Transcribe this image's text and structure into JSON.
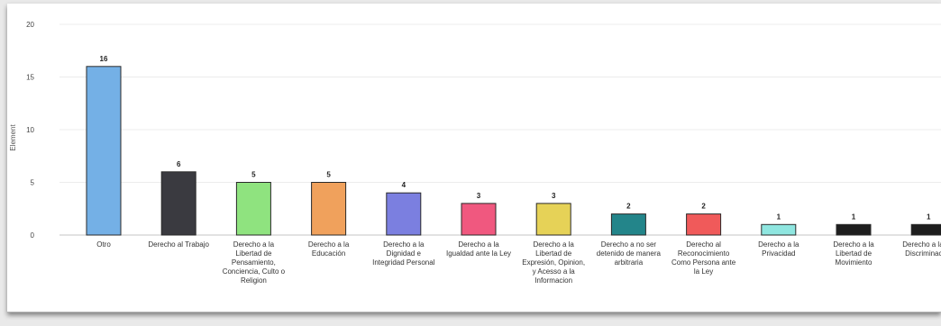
{
  "chart_data": {
    "type": "bar",
    "ylabel": "Element",
    "ylim": [
      0,
      20
    ],
    "yticks": [
      0,
      5,
      10,
      15,
      20
    ],
    "grid": true,
    "categories": [
      "Otro",
      "Derecho al Trabajo",
      "Derecho a la Libertad de Pensamiento, Conciencia, Culto o Religion",
      "Derecho a la Educación",
      "Derecho a la Dignidad e Integridad Personal",
      "Derecho a la Igualdad ante la Ley",
      "Derecho a la Libertad de Expresión, Opinion, y Acesso a la Informacion",
      "Derecho a no ser detenido de manera arbitraria",
      "Derecho al Reconocimiento Como Persona ante la Ley",
      "Derecho a la Privacidad",
      "Derecho a la Libertad de Movimiento",
      "Derecho a la No Discriminacion"
    ],
    "values": [
      16,
      6,
      5,
      5,
      4,
      3,
      3,
      2,
      2,
      1,
      1,
      1
    ],
    "colors": [
      "#74b0e6",
      "#3a3a40",
      "#8fe37f",
      "#f0a15c",
      "#7b7fe0",
      "#f0587f",
      "#e6d257",
      "#23858a",
      "#f05a5a",
      "#8fe6e0",
      "#1e1e1e",
      "#1e1e1e"
    ]
  }
}
